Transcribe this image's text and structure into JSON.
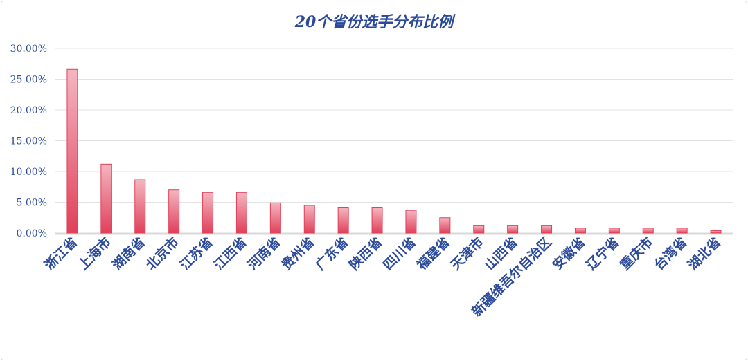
{
  "chart_data": {
    "type": "bar",
    "title": "20个省份选手分布比例",
    "categories": [
      "浙江省",
      "上海市",
      "湖南省",
      "北京市",
      "江苏省",
      "江西省",
      "河南省",
      "贵州省",
      "广东省",
      "陕西省",
      "四川省",
      "福建省",
      "天津市",
      "山西省",
      "新疆维吾尔自治区",
      "安徽省",
      "辽宁省",
      "重庆市",
      "台湾省",
      "湖北省"
    ],
    "values": [
      26.6,
      11.2,
      8.65,
      7.0,
      6.6,
      6.6,
      4.9,
      4.5,
      4.1,
      4.1,
      3.7,
      2.5,
      1.2,
      1.2,
      1.2,
      0.8,
      0.8,
      0.8,
      0.8,
      0.4
    ],
    "y_unit": "%",
    "ylim": [
      0,
      30
    ],
    "yticks": [
      "0.00%",
      "5.00%",
      "10.00%",
      "15.00%",
      "20.00%",
      "25.00%",
      "30.00%"
    ],
    "grid": true,
    "legend": "none",
    "colors": {
      "bar_top": "#f4b6c0",
      "bar_bottom": "#e0405a",
      "bar_stroke": "#e0405a",
      "text": "#2b4a9a",
      "grid": "#e3e3e3",
      "axis": "#d9d9d9"
    }
  }
}
